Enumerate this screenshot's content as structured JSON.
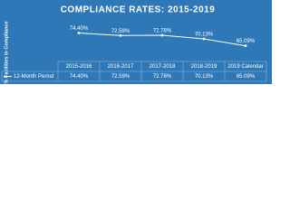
{
  "chart_data": {
    "type": "line",
    "title": "COMPLIANCE RATES: 2015-2019",
    "y_label": "% Facilities in Compliance",
    "categories": [
      "2015-2016",
      "2016-2017",
      "2017-2018",
      "2018-2019",
      "2019 Calendar"
    ],
    "series": [
      {
        "name": "12-Month Period",
        "color": "#ffffff",
        "values": [
          74.4,
          72.59,
          72.78,
          70.13,
          65.09
        ],
        "value_labels": [
          "74.40%",
          "72.59%",
          "72.78%",
          "70.13%",
          "65.09%"
        ]
      }
    ],
    "ylim": [
      55,
      80
    ],
    "data_table": true,
    "background": "#2f78b8"
  }
}
